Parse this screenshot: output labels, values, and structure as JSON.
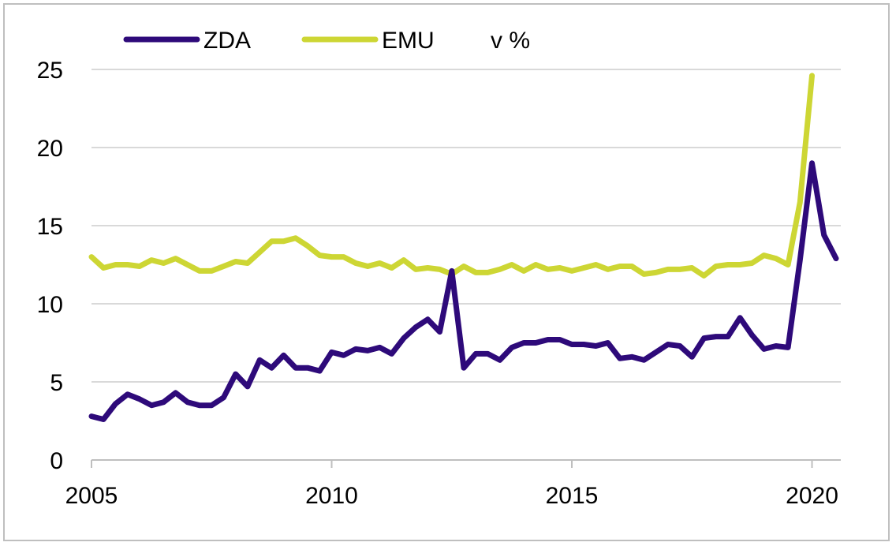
{
  "chart_data": {
    "type": "line",
    "title": "",
    "unit_label": "v %",
    "xlim": [
      2005,
      2020.5
    ],
    "ylim": [
      0,
      25
    ],
    "grid": true,
    "legend_position": "top",
    "x_ticks": [
      2005,
      2010,
      2015,
      2020
    ],
    "y_ticks": [
      0,
      5,
      10,
      15,
      20,
      25
    ],
    "x": [
      2005.0,
      2005.25,
      2005.5,
      2005.75,
      2006.0,
      2006.25,
      2006.5,
      2006.75,
      2007.0,
      2007.25,
      2007.5,
      2007.75,
      2008.0,
      2008.25,
      2008.5,
      2008.75,
      2009.0,
      2009.25,
      2009.5,
      2009.75,
      2010.0,
      2010.25,
      2010.5,
      2010.75,
      2011.0,
      2011.25,
      2011.5,
      2011.75,
      2012.0,
      2012.25,
      2012.5,
      2012.75,
      2013.0,
      2013.25,
      2013.5,
      2013.75,
      2014.0,
      2014.25,
      2014.5,
      2014.75,
      2015.0,
      2015.25,
      2015.5,
      2015.75,
      2016.0,
      2016.25,
      2016.5,
      2016.75,
      2017.0,
      2017.25,
      2017.5,
      2017.75,
      2018.0,
      2018.25,
      2018.5,
      2018.75,
      2019.0,
      2019.25,
      2019.5,
      2019.75,
      2020.0,
      2020.25,
      2020.5
    ],
    "series": [
      {
        "name": "ZDA",
        "color": "#2e0a7a",
        "values": [
          2.8,
          2.6,
          3.6,
          4.2,
          3.9,
          3.5,
          3.7,
          4.3,
          3.7,
          3.5,
          3.5,
          4.0,
          5.5,
          4.7,
          6.4,
          5.9,
          6.7,
          5.9,
          5.9,
          5.7,
          6.9,
          6.7,
          7.1,
          7.0,
          7.2,
          6.8,
          7.8,
          8.5,
          9.0,
          8.2,
          12.1,
          5.9,
          6.8,
          6.8,
          6.4,
          7.2,
          7.5,
          7.5,
          7.7,
          7.7,
          7.4,
          7.4,
          7.3,
          7.5,
          6.5,
          6.6,
          6.4,
          6.9,
          7.4,
          7.3,
          6.6,
          7.8,
          7.9,
          7.9,
          9.1,
          8.0,
          7.1,
          7.3,
          7.2,
          12.8,
          19.0,
          14.4,
          12.9
        ]
      },
      {
        "name": "EMU",
        "color": "#cdd634",
        "values": [
          13.0,
          12.3,
          12.5,
          12.5,
          12.4,
          12.8,
          12.6,
          12.9,
          12.5,
          12.1,
          12.1,
          12.4,
          12.7,
          12.6,
          13.3,
          14.0,
          14.0,
          14.2,
          13.7,
          13.1,
          13.0,
          13.0,
          12.6,
          12.4,
          12.6,
          12.3,
          12.8,
          12.2,
          12.3,
          12.2,
          11.9,
          12.4,
          12.0,
          12.0,
          12.2,
          12.5,
          12.1,
          12.5,
          12.2,
          12.3,
          12.1,
          12.3,
          12.5,
          12.2,
          12.4,
          12.4,
          11.9,
          12.0,
          12.2,
          12.2,
          12.3,
          11.8,
          12.4,
          12.5,
          12.5,
          12.6,
          13.1,
          12.9,
          12.5,
          16.5,
          24.6,
          null,
          null
        ]
      }
    ]
  }
}
